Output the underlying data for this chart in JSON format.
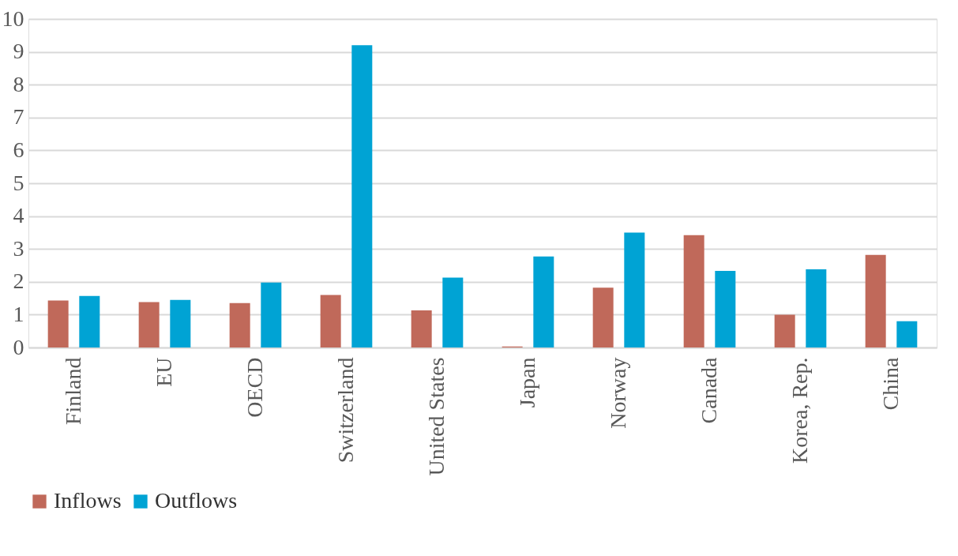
{
  "chart_data": {
    "type": "bar",
    "categories": [
      "Finland",
      "EU",
      "OECD",
      "Switzerland",
      "United States",
      "Japan",
      "Norway",
      "Canada",
      "Korea, Rep.",
      "China"
    ],
    "series": [
      {
        "name": "Inflows",
        "color": "#c0695a",
        "values": [
          1.43,
          1.38,
          1.35,
          1.6,
          1.13,
          0.03,
          1.82,
          3.42,
          1.0,
          2.82
        ]
      },
      {
        "name": "Outflows",
        "color": "#00a3d4",
        "values": [
          1.57,
          1.45,
          1.98,
          9.2,
          2.13,
          2.77,
          3.5,
          2.33,
          2.38,
          0.8
        ]
      }
    ],
    "ylim": [
      0,
      10
    ],
    "yticks": [
      0,
      1,
      2,
      3,
      4,
      5,
      6,
      7,
      8,
      9,
      10
    ],
    "grid": "y",
    "legend": "bottom"
  }
}
